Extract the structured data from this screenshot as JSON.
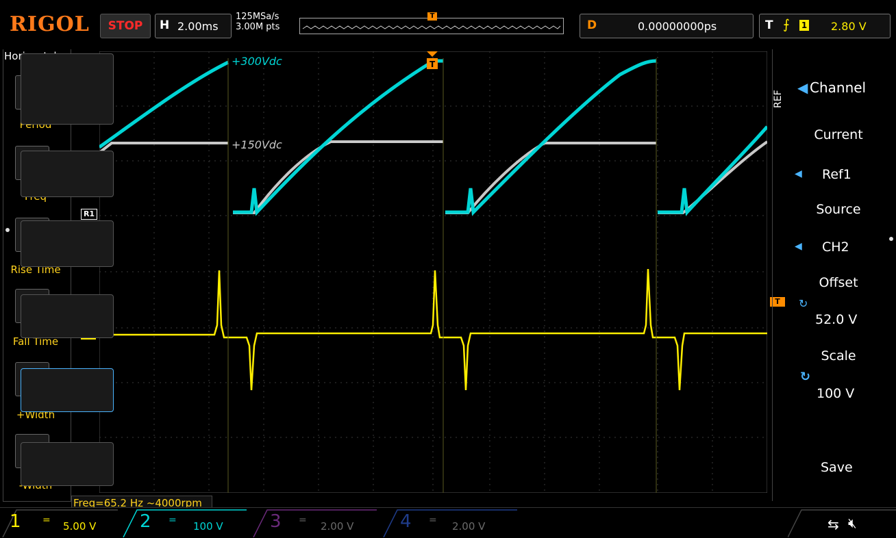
{
  "topbar": {
    "logo": "RIGOL",
    "run_state": "STOP",
    "horizontal_label": "H",
    "timebase": "2.00ms",
    "sample_rate": "125MSa/s",
    "memory_depth": "3.00M pts",
    "delay_label": "D",
    "delay_value": "0.00000000ps",
    "trigger_label": "T",
    "trigger_edge": "rising-edge-icon",
    "trigger_channel": "1",
    "trigger_level": "2.80 V"
  },
  "left_panel": {
    "title": "Horizontal",
    "items": [
      {
        "label": "Period",
        "icon": "period-icon"
      },
      {
        "label": "Freq",
        "icon": "frequency-icon"
      },
      {
        "label": "Rise Time",
        "icon": "rise-time-icon"
      },
      {
        "label": "Fall Time",
        "icon": "fall-time-icon"
      },
      {
        "label": "+Width",
        "icon": "positive-width-icon"
      },
      {
        "label": "-Width",
        "icon": "negative-width-icon"
      }
    ]
  },
  "screen": {
    "ref_marker": "R1",
    "ch1_marker": "1",
    "trigger_marker": "T",
    "annotation_high": "+300Vdc",
    "annotation_mid": "+150Vdc",
    "colors": {
      "ch1": "#ffee00",
      "ch2": "#00d5d5",
      "ref": "#c8c8c8",
      "grid": "#3a3a3a"
    }
  },
  "right_menu": {
    "ref_tab": "REF",
    "channel_label": "Channel",
    "current_label": "Current",
    "current_value": "Ref1",
    "source_label": "Source",
    "source_value": "CH2",
    "offset_label": "Offset",
    "offset_value": "52.0 V",
    "scale_label": "Scale",
    "scale_value": "100 V",
    "save_label": "Save"
  },
  "measurement": {
    "freq_text": "Freq=65.2 Hz  ~4000rpm"
  },
  "channels": [
    {
      "num": "1",
      "coupling": "=",
      "scale": "5.00 V",
      "color": "#ffee00"
    },
    {
      "num": "2",
      "coupling": "=",
      "scale": "100 V",
      "color": "#00d5d5"
    },
    {
      "num": "3",
      "coupling": "=",
      "scale": "2.00 V",
      "color": "#a040c0"
    },
    {
      "num": "4",
      "coupling": "=",
      "scale": "2.00 V",
      "color": "#2a6adf"
    }
  ],
  "status_icons": [
    "usb-icon",
    "speaker-mute-icon"
  ]
}
